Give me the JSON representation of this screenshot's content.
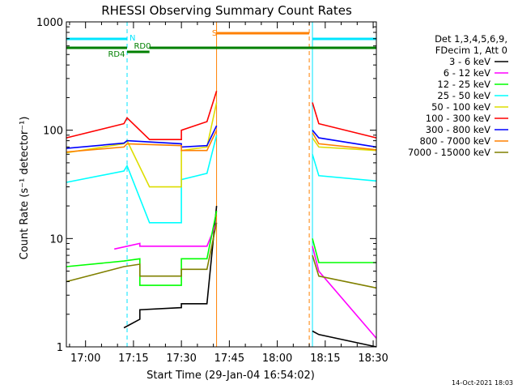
{
  "chart_data": {
    "type": "line",
    "title": "RHESSI Observing Summary Count Rates",
    "xlabel": "Start Time (29-Jan-04 16:54:02)",
    "ylabel": "Count Rate (s⁻¹ detector⁻¹)",
    "yscale": "log",
    "ylim": [
      1,
      1000
    ],
    "xlim": [
      "16:54",
      "18:31"
    ],
    "x_ticks": [
      "17:00",
      "17:15",
      "17:30",
      "17:45",
      "18:00",
      "18:15",
      "18:30"
    ],
    "y_ticks": [
      "1",
      "10",
      "100",
      "1000"
    ],
    "legend_header": [
      "Det 1,3,4,5,6,9,",
      "FDecim 1, Att 0"
    ],
    "legend_placement": "right",
    "footer_date": "14-Oct-2021 18:03",
    "flags": [
      {
        "label": "N",
        "color": "#00e5ff"
      },
      {
        "label": "RD0",
        "color": "#008000"
      },
      {
        "label": "RD4",
        "color": "#008000"
      },
      {
        "label": "S",
        "color": "#ff8000"
      }
    ],
    "vlines": [
      {
        "t": "16:54",
        "color": "#00e5ff",
        "style": "solid"
      },
      {
        "t": "17:13",
        "color": "#00e5ff",
        "style": "dashed"
      },
      {
        "t": "17:41",
        "color": "#ff8000",
        "style": "solid"
      },
      {
        "t": "18:10",
        "color": "#ff8000",
        "style": "dashed"
      },
      {
        "t": "18:11",
        "color": "#00e5ff",
        "style": "solid"
      },
      {
        "t": "18:31",
        "color": "#00e5ff",
        "style": "dashed"
      }
    ],
    "series": [
      {
        "name": "3 - 6 keV",
        "color": "#000000",
        "x": [
          "17:12",
          "17:17",
          "17:17",
          "17:30",
          "17:30",
          "17:38",
          "17:41",
          "18:11",
          "18:13",
          "18:31"
        ],
        "y": [
          1.5,
          1.8,
          2.2,
          2.3,
          2.5,
          2.5,
          20,
          1.4,
          1.3,
          1.0
        ]
      },
      {
        "name": "6 - 12 keV",
        "color": "#ff00ff",
        "x": [
          "17:09",
          "17:17",
          "17:17",
          "17:38",
          "17:41",
          "18:11",
          "18:13",
          "18:31"
        ],
        "y": [
          8,
          9,
          8.5,
          8.5,
          14,
          8.5,
          5,
          1.2
        ]
      },
      {
        "name": "12 - 25 keV",
        "color": "#00ff00",
        "x": [
          "16:54",
          "17:12",
          "17:17",
          "17:17",
          "17:30",
          "17:30",
          "17:38",
          "17:41",
          "18:11",
          "18:13",
          "18:31"
        ],
        "y": [
          5.5,
          6.2,
          6.5,
          3.7,
          3.7,
          6.5,
          6.5,
          18,
          10,
          6,
          6
        ]
      },
      {
        "name": "25 - 50 keV",
        "color": "#00ffff",
        "x": [
          "16:54",
          "17:12",
          "17:13",
          "17:20",
          "17:20",
          "17:30",
          "17:30",
          "17:38",
          "17:41",
          "18:11",
          "18:13",
          "18:31"
        ],
        "y": [
          33,
          42,
          47,
          14,
          14,
          14,
          35,
          40,
          90,
          60,
          38,
          34
        ]
      },
      {
        "name": "50 - 100 keV",
        "color": "#dddd00",
        "x": [
          "16:54",
          "17:12",
          "17:13",
          "17:20",
          "17:20",
          "17:30",
          "17:30",
          "17:38",
          "17:41",
          "18:11",
          "18:13",
          "18:31"
        ],
        "y": [
          62,
          75,
          80,
          30,
          30,
          30,
          65,
          70,
          180,
          85,
          70,
          65
        ]
      },
      {
        "name": "100 - 300 keV",
        "color": "#ff0000",
        "x": [
          "16:54",
          "17:12",
          "17:13",
          "17:20",
          "17:20",
          "17:30",
          "17:30",
          "17:38",
          "17:41",
          "18:11",
          "18:13",
          "18:31"
        ],
        "y": [
          85,
          115,
          130,
          82,
          82,
          82,
          100,
          120,
          230,
          180,
          115,
          85
        ]
      },
      {
        "name": "300 - 800 keV",
        "color": "#0000ff",
        "x": [
          "16:54",
          "17:12",
          "17:13",
          "17:30",
          "17:30",
          "17:38",
          "17:41",
          "18:11",
          "18:13",
          "18:31"
        ],
        "y": [
          68,
          76,
          80,
          75,
          70,
          72,
          110,
          100,
          85,
          70
        ]
      },
      {
        "name": "800 - 7000 keV",
        "color": "#ff8000",
        "x": [
          "16:54",
          "17:12",
          "17:13",
          "17:30",
          "17:30",
          "17:38",
          "17:41",
          "18:11",
          "18:13",
          "18:31"
        ],
        "y": [
          63,
          70,
          75,
          72,
          65,
          65,
          100,
          95,
          75,
          66
        ]
      },
      {
        "name": "7000 - 15000 keV",
        "color": "#808000",
        "x": [
          "16:54",
          "17:12",
          "17:17",
          "17:17",
          "17:30",
          "17:30",
          "17:38",
          "17:41",
          "18:11",
          "18:13",
          "18:31"
        ],
        "y": [
          4,
          5.5,
          5.8,
          4.5,
          4.5,
          5.2,
          5.2,
          14,
          7,
          4.5,
          3.5
        ]
      }
    ]
  }
}
